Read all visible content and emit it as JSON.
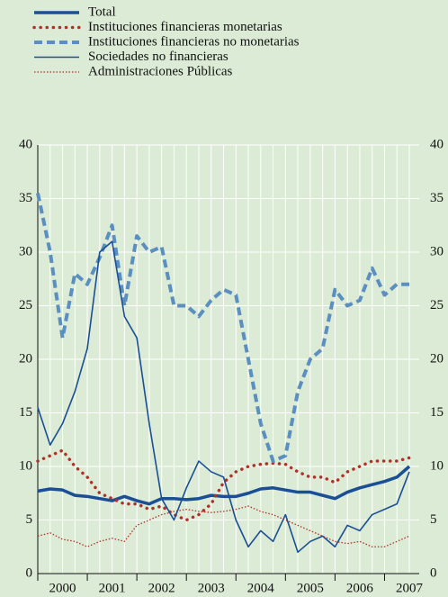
{
  "chart_data": {
    "type": "line",
    "x": [
      2000,
      2000.25,
      2000.5,
      2000.75,
      2001,
      2001.25,
      2001.5,
      2001.75,
      2002,
      2002.25,
      2002.5,
      2002.75,
      2003,
      2003.25,
      2003.5,
      2003.75,
      2004,
      2004.25,
      2004.5,
      2004.75,
      2005,
      2005.25,
      2005.5,
      2005.75,
      2006,
      2006.25,
      2006.5,
      2006.75,
      2007,
      2007.25,
      2007.5
    ],
    "series": [
      {
        "name": "Total",
        "color": "#1a4f95",
        "style": "solid",
        "width": 3.5,
        "values": [
          7.7,
          7.9,
          7.8,
          7.3,
          7.2,
          7.0,
          6.8,
          7.2,
          6.8,
          6.5,
          7.0,
          7.0,
          6.9,
          7.0,
          7.3,
          7.2,
          7.2,
          7.5,
          7.9,
          8.0,
          7.8,
          7.6,
          7.6,
          7.3,
          7.0,
          7.6,
          8.0,
          8.3,
          8.6,
          9.0,
          10.0
        ]
      },
      {
        "name": "Instituciones financieras monetarias",
        "color": "#b0302a",
        "style": "dotted",
        "width": 3.5,
        "values": [
          10.5,
          11,
          11.5,
          10,
          9,
          7.5,
          7,
          6.5,
          6.5,
          6.0,
          6.3,
          5.5,
          5.0,
          5.5,
          6.5,
          8.5,
          9.5,
          10,
          10.2,
          10.3,
          10.2,
          9.5,
          9,
          9,
          8.5,
          9.5,
          10,
          10.5,
          10.5,
          10.5,
          10.8
        ]
      },
      {
        "name": "Instituciones financieras no monetarias",
        "color": "#5a8fc0",
        "style": "dashed",
        "width": 4,
        "values": [
          35.5,
          30,
          22,
          28,
          27,
          29.5,
          32.5,
          25,
          31.5,
          30,
          30.5,
          25,
          25,
          24,
          25.5,
          26.5,
          26,
          20,
          14,
          10.5,
          11,
          17,
          20,
          21,
          26.5,
          25,
          25.5,
          28.5,
          26,
          27,
          27
        ]
      },
      {
        "name": "Sociedades no financieras",
        "color": "#1a4f95",
        "style": "solid",
        "width": 1.6,
        "values": [
          15.5,
          12,
          14,
          17,
          21,
          30,
          31,
          24,
          22,
          14,
          7,
          5,
          8,
          10.5,
          9.5,
          9,
          5,
          2.5,
          4,
          3,
          5.5,
          2,
          3,
          3.5,
          2.5,
          4.5,
          4,
          5.5,
          6,
          6.5,
          9.5
        ]
      },
      {
        "name": "Administraciones Públicas",
        "color": "#b0302a",
        "style": "dotted",
        "width": 1.3,
        "values": [
          3.5,
          3.8,
          3.2,
          3.0,
          2.5,
          3,
          3.3,
          3.0,
          4.5,
          5,
          5.5,
          5.8,
          6,
          5.8,
          5.7,
          5.8,
          6,
          6.3,
          5.8,
          5.5,
          5,
          4.5,
          4,
          3.5,
          3,
          2.8,
          3,
          2.5,
          2.5,
          3,
          3.5
        ]
      }
    ],
    "xlim": [
      2000,
      2007.7
    ],
    "xticks": [
      {
        "value": 2000.5,
        "label": "2000"
      },
      {
        "value": 2001.5,
        "label": "2001"
      },
      {
        "value": 2002.5,
        "label": "2002"
      },
      {
        "value": 2003.5,
        "label": "2003"
      },
      {
        "value": 2004.5,
        "label": "2004"
      },
      {
        "value": 2005.5,
        "label": "2005"
      },
      {
        "value": 2006.5,
        "label": "2006"
      },
      {
        "value": 2007.5,
        "label": "2007"
      }
    ],
    "ylim": [
      0,
      40
    ],
    "yticks": [
      0,
      5,
      10,
      15,
      20,
      25,
      30,
      35,
      40
    ],
    "grid": true,
    "right_axis": true
  }
}
